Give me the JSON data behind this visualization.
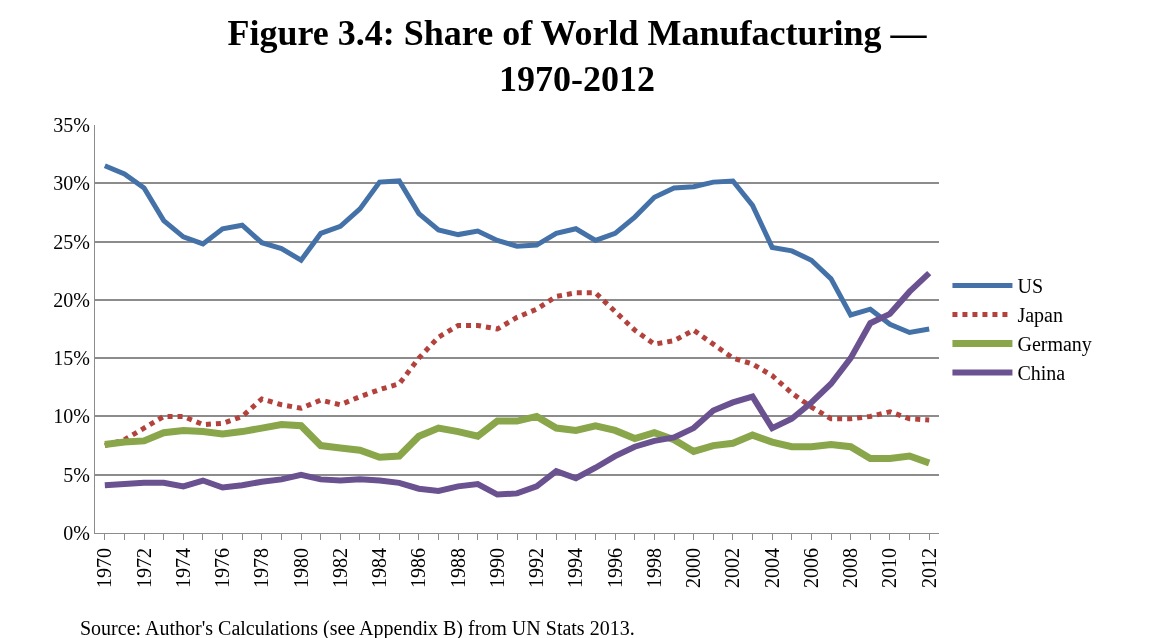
{
  "chart_data": {
    "type": "line",
    "title": "Figure 3.4: Share of World Manufacturing —\n1970-2012",
    "x": [
      1970,
      1971,
      1972,
      1973,
      1974,
      1975,
      1976,
      1977,
      1978,
      1979,
      1980,
      1981,
      1982,
      1983,
      1984,
      1985,
      1986,
      1987,
      1988,
      1989,
      1990,
      1991,
      1992,
      1993,
      1994,
      1995,
      1996,
      1997,
      1998,
      1999,
      2000,
      2001,
      2002,
      2003,
      2004,
      2005,
      2006,
      2007,
      2008,
      2009,
      2010,
      2011,
      2012
    ],
    "series": [
      {
        "name": "US",
        "color": "#4472a8",
        "line_style": "solid",
        "values": [
          31.5,
          30.8,
          29.6,
          26.8,
          25.4,
          24.8,
          26.1,
          26.4,
          24.9,
          24.4,
          23.4,
          25.7,
          26.3,
          27.8,
          30.1,
          30.2,
          27.4,
          26.0,
          25.6,
          25.9,
          25.1,
          24.6,
          24.7,
          25.7,
          26.1,
          25.1,
          25.7,
          27.1,
          28.8,
          29.6,
          29.7,
          30.1,
          30.2,
          28.1,
          24.5,
          24.2,
          23.4,
          21.8,
          18.7,
          19.2,
          17.9,
          17.2,
          17.5
        ]
      },
      {
        "name": "Japan",
        "color": "#b3413c",
        "line_style": "dotted",
        "values": [
          7.5,
          8.0,
          9.0,
          10.0,
          10.0,
          9.3,
          9.4,
          10.0,
          11.5,
          11.0,
          10.7,
          11.4,
          11.0,
          11.7,
          12.3,
          12.8,
          15.0,
          16.8,
          17.8,
          17.8,
          17.5,
          18.5,
          19.2,
          20.3,
          20.6,
          20.6,
          19.0,
          17.4,
          16.2,
          16.5,
          17.4,
          16.2,
          15.0,
          14.5,
          13.5,
          12.0,
          10.8,
          9.8,
          9.8,
          10.0,
          10.4,
          9.8,
          9.7
        ]
      },
      {
        "name": "Germany",
        "color": "#8aa64a",
        "line_style": "solid",
        "values": [
          7.6,
          7.8,
          7.9,
          8.6,
          8.8,
          8.7,
          8.5,
          8.7,
          9.0,
          9.3,
          9.2,
          7.5,
          7.3,
          7.1,
          6.5,
          6.6,
          8.3,
          9.0,
          8.7,
          8.3,
          9.6,
          9.6,
          10.0,
          9.0,
          8.8,
          9.2,
          8.8,
          8.1,
          8.6,
          8.0,
          7.0,
          7.5,
          7.7,
          8.4,
          7.8,
          7.4,
          7.4,
          7.6,
          7.4,
          6.4,
          6.4,
          6.6,
          6.0
        ]
      },
      {
        "name": "China",
        "color": "#6a5190",
        "line_style": "solid",
        "values": [
          4.1,
          4.2,
          4.3,
          4.3,
          4.0,
          4.5,
          3.9,
          4.1,
          4.4,
          4.6,
          5.0,
          4.6,
          4.5,
          4.6,
          4.5,
          4.3,
          3.8,
          3.6,
          4.0,
          4.2,
          3.3,
          3.4,
          4.0,
          5.3,
          4.7,
          5.6,
          6.6,
          7.4,
          7.9,
          8.2,
          9.0,
          10.5,
          11.2,
          11.7,
          9.0,
          9.8,
          11.2,
          12.8,
          15.0,
          18.0,
          18.8,
          20.7,
          22.3
        ]
      }
    ],
    "xlim": [
      1969.5,
      2012.5
    ],
    "xticks": [
      1970,
      1972,
      1974,
      1976,
      1978,
      1980,
      1982,
      1984,
      1986,
      1988,
      1990,
      1992,
      1994,
      1996,
      1998,
      2000,
      2002,
      2004,
      2006,
      2008,
      2010,
      2012
    ],
    "ylim": [
      0,
      35
    ],
    "yticks": [
      {
        "value": 0,
        "label": "0%"
      },
      {
        "value": 5,
        "label": "5%"
      },
      {
        "value": 10,
        "label": "10%"
      },
      {
        "value": 15,
        "label": "15%"
      },
      {
        "value": 20,
        "label": "20%"
      },
      {
        "value": 25,
        "label": "25%"
      },
      {
        "value": 30,
        "label": "30%"
      },
      {
        "value": 35,
        "label": "35%"
      }
    ],
    "grid": "y",
    "legend": "right",
    "marker": "none",
    "annotations": [
      "Source: Author's Calculations (see Appendix B) from UN Stats 2013."
    ]
  }
}
